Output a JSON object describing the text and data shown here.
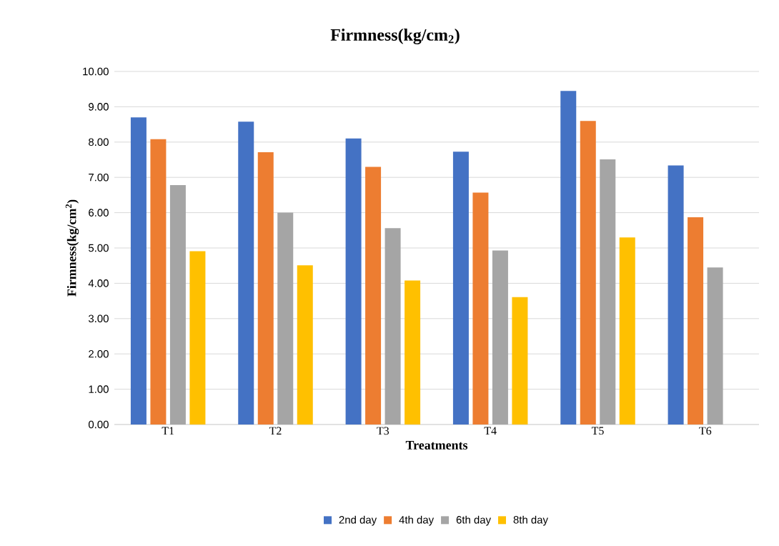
{
  "chart_data": {
    "type": "bar",
    "title": "Firmness(kg/cm$_{2}$)",
    "xlabel": "Treatments",
    "ylabel": "Firmness(kg/cm$^{2}$)",
    "categories": [
      "T1",
      "T2",
      "T3",
      "T4",
      "T5",
      "T6"
    ],
    "series": [
      {
        "name": "2nd day",
        "color": "#4472c4",
        "values": [
          8.7,
          8.58,
          8.1,
          7.73,
          9.45,
          7.34
        ]
      },
      {
        "name": "4th day",
        "color": "#ed7d31",
        "values": [
          8.08,
          7.71,
          7.3,
          6.57,
          8.6,
          5.87
        ]
      },
      {
        "name": "6th day",
        "color": "#a5a5a5",
        "values": [
          6.78,
          6.0,
          5.56,
          4.93,
          7.51,
          4.45
        ]
      },
      {
        "name": "8th day",
        "color": "#ffc000",
        "values": [
          4.91,
          4.51,
          4.08,
          3.61,
          5.3,
          null
        ]
      }
    ],
    "ylim": [
      0,
      10
    ],
    "yticks": [
      {
        "value": 0,
        "label": "0.00"
      },
      {
        "value": 1,
        "label": "1.00"
      },
      {
        "value": 2,
        "label": "2.00"
      },
      {
        "value": 3,
        "label": "3.00"
      },
      {
        "value": 4,
        "label": "4.00"
      },
      {
        "value": 5,
        "label": "5.00"
      },
      {
        "value": 6,
        "label": "6.00"
      },
      {
        "value": 7,
        "label": "7.00"
      },
      {
        "value": 8,
        "label": "8.00"
      },
      {
        "value": 9,
        "label": "9.00"
      },
      {
        "value": 10,
        "label": "10.00"
      }
    ],
    "grid": "y",
    "legend": "bottom"
  }
}
